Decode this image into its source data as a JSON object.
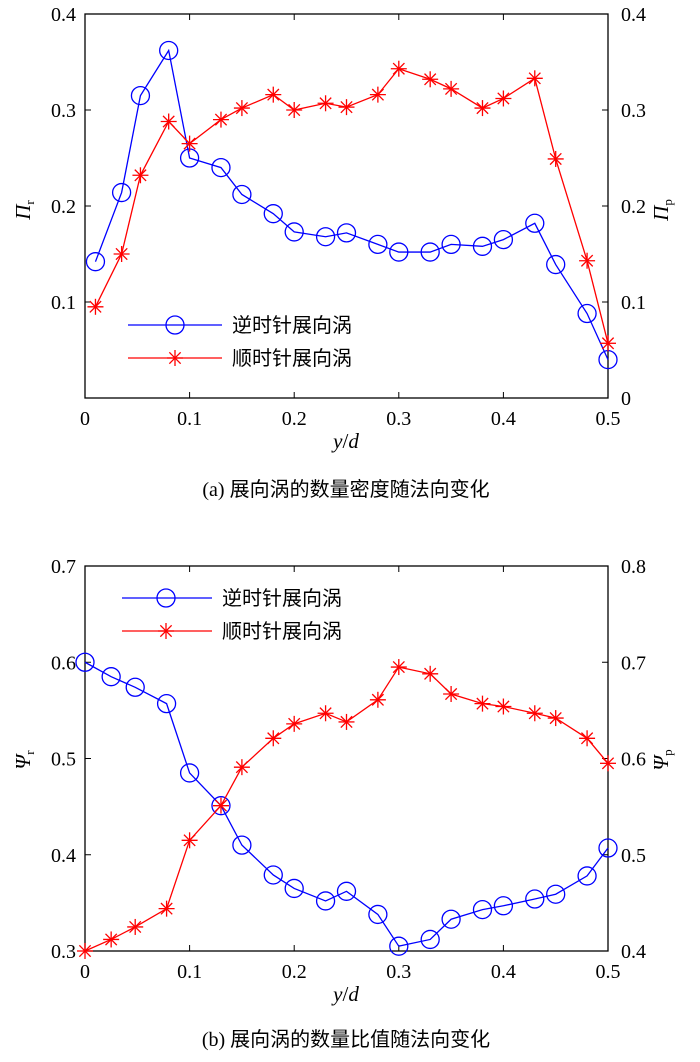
{
  "chart_data": [
    {
      "type": "line",
      "caption": "(a) 展向涡的数量密度随法向变化",
      "xlabel_main": "y",
      "xlabel_sep": "/",
      "xlabel_den": "d",
      "ylabel_left_main": "Π",
      "ylabel_left_sub": "r",
      "ylabel_right_main": "Π",
      "ylabel_right_sub": "p",
      "xlim": [
        0,
        0.5
      ],
      "ylim_left": [
        0,
        0.4
      ],
      "ylim_right": [
        0,
        0.4
      ],
      "x_ticks": [
        0,
        0.1,
        0.2,
        0.3,
        0.4,
        0.5
      ],
      "x_tick_labels": [
        "0",
        "0.1",
        "0.2",
        "0.3",
        "0.4",
        "0.5"
      ],
      "y_left_ticks": [
        0.1,
        0.2,
        0.3,
        0.4
      ],
      "y_left_tick_labels": [
        "0.1",
        "0.2",
        "0.3",
        "0.4"
      ],
      "y_right_ticks": [
        0,
        0.1,
        0.2,
        0.3,
        0.4
      ],
      "y_right_tick_labels": [
        "0",
        "0.1",
        "0.2",
        "0.3",
        "0.4"
      ],
      "legend": "bottom-left",
      "series": [
        {
          "name": "逆时针展向涡",
          "axis": "left",
          "color": "#0000ff",
          "marker": "circle",
          "x": [
            0.01,
            0.035,
            0.053,
            0.08,
            0.1,
            0.13,
            0.15,
            0.18,
            0.2,
            0.23,
            0.25,
            0.28,
            0.3,
            0.33,
            0.35,
            0.38,
            0.4,
            0.43,
            0.45,
            0.48,
            0.5
          ],
          "values": [
            0.142,
            0.214,
            0.315,
            0.362,
            0.25,
            0.24,
            0.212,
            0.192,
            0.173,
            0.168,
            0.172,
            0.16,
            0.152,
            0.152,
            0.16,
            0.158,
            0.165,
            0.182,
            0.139,
            0.088,
            0.04
          ]
        },
        {
          "name": "顺时针展向涡",
          "axis": "right",
          "color": "#ff0000",
          "marker": "star",
          "x": [
            0.01,
            0.035,
            0.053,
            0.08,
            0.1,
            0.13,
            0.15,
            0.18,
            0.2,
            0.23,
            0.25,
            0.28,
            0.3,
            0.33,
            0.35,
            0.38,
            0.4,
            0.43,
            0.45,
            0.48,
            0.5
          ],
          "values": [
            0.095,
            0.15,
            0.232,
            0.288,
            0.265,
            0.29,
            0.302,
            0.316,
            0.3,
            0.307,
            0.303,
            0.316,
            0.343,
            0.332,
            0.322,
            0.302,
            0.312,
            0.333,
            0.249,
            0.143,
            0.057
          ]
        }
      ]
    },
    {
      "type": "line",
      "caption": "(b) 展向涡的数量比值随法向变化",
      "xlabel_main": "y",
      "xlabel_sep": "/",
      "xlabel_den": "d",
      "ylabel_left_main": "Ψ",
      "ylabel_left_sub": "r",
      "ylabel_right_main": "Ψ",
      "ylabel_right_sub": "p",
      "xlim": [
        0,
        0.5
      ],
      "ylim_left": [
        0.3,
        0.7
      ],
      "ylim_right": [
        0.4,
        0.8
      ],
      "x_ticks": [
        0,
        0.1,
        0.2,
        0.3,
        0.4,
        0.5
      ],
      "x_tick_labels": [
        "0",
        "0.1",
        "0.2",
        "0.3",
        "0.4",
        "0.5"
      ],
      "y_left_ticks": [
        0.3,
        0.4,
        0.5,
        0.6,
        0.7
      ],
      "y_left_tick_labels": [
        "0.3",
        "0.4",
        "0.5",
        "0.6",
        "0.7"
      ],
      "y_right_ticks": [
        0.4,
        0.5,
        0.6,
        0.7,
        0.8
      ],
      "y_right_tick_labels": [
        "0.4",
        "0.5",
        "0.6",
        "0.7",
        "0.8"
      ],
      "legend": "top-left",
      "series": [
        {
          "name": "逆时针展向涡",
          "axis": "left",
          "color": "#0000ff",
          "marker": "circle",
          "x": [
            0,
            0.025,
            0.048,
            0.078,
            0.1,
            0.13,
            0.15,
            0.18,
            0.2,
            0.23,
            0.25,
            0.28,
            0.3,
            0.33,
            0.35,
            0.38,
            0.4,
            0.43,
            0.45,
            0.48,
            0.5
          ],
          "values": [
            0.6,
            0.585,
            0.574,
            0.557,
            0.485,
            0.451,
            0.41,
            0.379,
            0.365,
            0.352,
            0.362,
            0.338,
            0.305,
            0.312,
            0.333,
            0.343,
            0.347,
            0.354,
            0.359,
            0.378,
            0.407
          ]
        },
        {
          "name": "顺时针展向涡",
          "axis": "right",
          "color": "#ff0000",
          "marker": "star",
          "x": [
            0,
            0.025,
            0.048,
            0.078,
            0.1,
            0.13,
            0.15,
            0.18,
            0.2,
            0.23,
            0.25,
            0.28,
            0.3,
            0.33,
            0.35,
            0.38,
            0.4,
            0.43,
            0.45,
            0.48,
            0.5
          ],
          "values": [
            0.4,
            0.412,
            0.425,
            0.444,
            0.515,
            0.551,
            0.591,
            0.621,
            0.636,
            0.647,
            0.638,
            0.661,
            0.695,
            0.688,
            0.667,
            0.657,
            0.654,
            0.647,
            0.642,
            0.621,
            0.595
          ]
        }
      ]
    }
  ]
}
